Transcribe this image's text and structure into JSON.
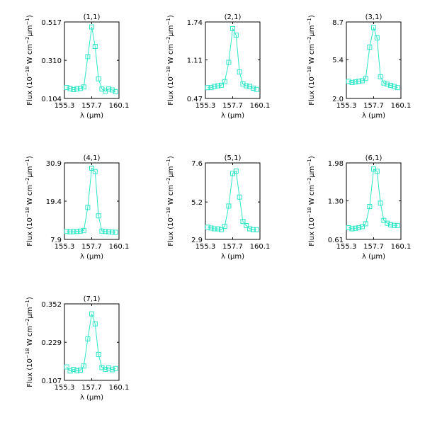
{
  "figure": {
    "series_color": "#2ee6c8",
    "axis_color": "#000000",
    "xlabel": "λ (μm)",
    "ylabel_prefix": "Flux (10",
    "ylabel_exp1": "−18",
    "ylabel_mid": " W cm",
    "ylabel_exp2": "−2",
    "ylabel_mid2": "μm",
    "ylabel_exp3": "−1",
    "ylabel_suffix": ")"
  },
  "chart_data": [
    {
      "type": "line",
      "title": "(1,1)",
      "xlabel": "λ (μm)",
      "ylabel": "Flux (10^-18 W cm^-2 μm^-1)",
      "marker": "square",
      "xlim": [
        155.3,
        160.1
      ],
      "ylim": [
        0.104,
        0.517
      ],
      "xticks": [
        "155.3",
        "157.7",
        "160.1"
      ],
      "yticks": [
        "0.104",
        "0.310",
        "0.517"
      ],
      "x": [
        155.5,
        155.8,
        156.1,
        156.4,
        156.7,
        157.0,
        157.35,
        157.7,
        158.0,
        158.3,
        158.6,
        158.9,
        159.2,
        159.5,
        159.8
      ],
      "values": [
        0.163,
        0.157,
        0.152,
        0.155,
        0.158,
        0.166,
        0.33,
        0.49,
        0.385,
        0.21,
        0.155,
        0.143,
        0.155,
        0.15,
        0.14
      ]
    },
    {
      "type": "line",
      "title": "(2,1)",
      "xlabel": "λ (μm)",
      "ylabel": "Flux (10^-18 W cm^-2 μm^-1)",
      "marker": "square",
      "xlim": [
        155.3,
        160.1
      ],
      "ylim": [
        0.47,
        1.74
      ],
      "xticks": [
        "155.3",
        "157.7",
        "160.1"
      ],
      "yticks": [
        "0.47",
        "1.11",
        "1.74"
      ],
      "x": [
        155.5,
        155.8,
        156.1,
        156.4,
        156.7,
        157.0,
        157.35,
        157.7,
        158.0,
        158.3,
        158.6,
        158.9,
        159.2,
        159.5,
        159.8
      ],
      "values": [
        0.65,
        0.65,
        0.67,
        0.68,
        0.69,
        0.75,
        1.07,
        1.63,
        1.52,
        0.91,
        0.71,
        0.68,
        0.67,
        0.64,
        0.62
      ]
    },
    {
      "type": "line",
      "title": "(3,1)",
      "xlabel": "λ (μm)",
      "ylabel": "Flux (10^-18 W cm^-2 μm^-1)",
      "marker": "square",
      "xlim": [
        155.3,
        160.1
      ],
      "ylim": [
        2.0,
        8.7
      ],
      "xticks": [
        "155.3",
        "157.7",
        "160.1"
      ],
      "yticks": [
        "2.0",
        "5.4",
        "8.7"
      ],
      "x": [
        155.5,
        155.8,
        156.1,
        156.4,
        156.7,
        157.0,
        157.35,
        157.7,
        158.0,
        158.3,
        158.6,
        158.9,
        159.2,
        159.5,
        159.8
      ],
      "values": [
        3.5,
        3.4,
        3.45,
        3.5,
        3.55,
        3.75,
        6.5,
        8.2,
        7.3,
        3.9,
        3.35,
        3.25,
        3.15,
        3.05,
        2.95
      ]
    },
    {
      "type": "line",
      "title": "(4,1)",
      "xlabel": "λ (μm)",
      "ylabel": "Flux (10^-18 W cm^-2 μm^-1)",
      "marker": "square",
      "xlim": [
        155.3,
        160.1
      ],
      "ylim": [
        7.9,
        30.9
      ],
      "xticks": [
        "155.3",
        "157.7",
        "160.1"
      ],
      "yticks": [
        "7.9",
        "19.4",
        "30.9"
      ],
      "x": [
        155.5,
        155.8,
        156.1,
        156.4,
        156.7,
        157.0,
        157.35,
        157.7,
        158.0,
        158.3,
        158.6,
        158.9,
        159.2,
        159.5,
        159.8
      ],
      "values": [
        10.3,
        10.2,
        10.25,
        10.3,
        10.4,
        10.6,
        17.5,
        29.3,
        28.3,
        15.0,
        10.4,
        10.3,
        10.2,
        10.1,
        10.05
      ]
    },
    {
      "type": "line",
      "title": "(5,1)",
      "xlabel": "λ (μm)",
      "ylabel": "Flux (10^-18 W cm^-2 μm^-1)",
      "marker": "square",
      "xlim": [
        155.3,
        160.1
      ],
      "ylim": [
        2.9,
        7.6
      ],
      "xticks": [
        "155.3",
        "157.7",
        "160.1"
      ],
      "yticks": [
        "2.9",
        "5.2",
        "7.6"
      ],
      "x": [
        155.5,
        155.8,
        156.1,
        156.4,
        156.7,
        157.0,
        157.35,
        157.7,
        158.0,
        158.3,
        158.6,
        158.9,
        159.2,
        159.5,
        159.8
      ],
      "values": [
        3.65,
        3.6,
        3.55,
        3.55,
        3.5,
        3.7,
        4.95,
        6.95,
        7.1,
        5.5,
        4.0,
        3.75,
        3.55,
        3.5,
        3.5
      ]
    },
    {
      "type": "line",
      "title": "(6,1)",
      "xlabel": "λ (μm)",
      "ylabel": "Flux (10^-18 W cm^-2 μm^-1)",
      "marker": "square",
      "xlim": [
        155.3,
        160.1
      ],
      "ylim": [
        0.61,
        1.98
      ],
      "xticks": [
        "155.3",
        "157.7",
        "160.1"
      ],
      "yticks": [
        "0.61",
        "1.30",
        "1.98"
      ],
      "x": [
        155.5,
        155.8,
        156.1,
        156.4,
        156.7,
        157.0,
        157.35,
        157.7,
        158.0,
        158.3,
        158.6,
        158.9,
        159.2,
        159.5,
        159.8
      ],
      "values": [
        0.82,
        0.8,
        0.81,
        0.82,
        0.84,
        0.89,
        1.2,
        1.87,
        1.83,
        1.26,
        0.95,
        0.9,
        0.87,
        0.86,
        0.86
      ]
    },
    {
      "type": "line",
      "title": "(7,1)",
      "xlabel": "λ (μm)",
      "ylabel": "Flux (10^-18 W cm^-2 μm^-1)",
      "marker": "square",
      "xlim": [
        155.3,
        160.1
      ],
      "ylim": [
        0.107,
        0.352
      ],
      "xticks": [
        "155.3",
        "157.7",
        "160.1"
      ],
      "yticks": [
        "0.107",
        "0.229",
        "0.352"
      ],
      "x": [
        155.5,
        155.8,
        156.1,
        156.4,
        156.7,
        157.0,
        157.35,
        157.7,
        158.0,
        158.3,
        158.6,
        158.9,
        159.2,
        159.5,
        159.8
      ],
      "values": [
        0.15,
        0.137,
        0.142,
        0.138,
        0.14,
        0.153,
        0.24,
        0.32,
        0.288,
        0.19,
        0.148,
        0.142,
        0.147,
        0.141,
        0.145
      ]
    }
  ]
}
